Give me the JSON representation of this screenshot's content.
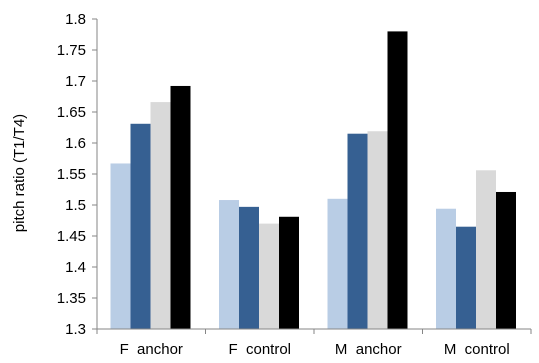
{
  "chart_data": {
    "type": "bar",
    "title": "",
    "xlabel": "",
    "ylabel": "pitch ratio (T1/T4)",
    "categories": [
      "F  anchor",
      "F  control",
      "M  anchor",
      "M  control"
    ],
    "ylim": [
      1.3,
      1.8
    ],
    "yticks": [
      "1.3",
      "1.35",
      "1.4",
      "1.45",
      "1.5",
      "1.55",
      "1.6",
      "1.65",
      "1.7",
      "1.75",
      "1.8"
    ],
    "grid": false,
    "legend": "none",
    "series": [
      {
        "color": "#b9cde5",
        "values": [
          1.567,
          1.508,
          1.51,
          1.494
        ]
      },
      {
        "color": "#366092",
        "values": [
          1.631,
          1.497,
          1.615,
          1.465
        ]
      },
      {
        "color": "#d9d9d9",
        "values": [
          1.666,
          1.47,
          1.619,
          1.556
        ]
      },
      {
        "color": "#000000",
        "values": [
          1.692,
          1.481,
          1.78,
          1.521
        ]
      }
    ]
  }
}
